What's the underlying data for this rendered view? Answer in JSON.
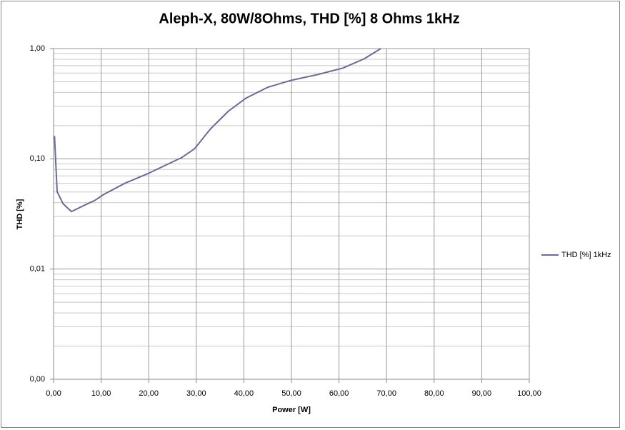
{
  "chart_data": {
    "type": "line",
    "title": "Aleph-X, 80W/8Ohms, THD [%] 8 Ohms 1kHz",
    "xlabel": "Power [W]",
    "ylabel": "THD [%]",
    "xlim": [
      0,
      100
    ],
    "xticks": [
      {
        "value": 0,
        "label": "0,00"
      },
      {
        "value": 10,
        "label": "10,00"
      },
      {
        "value": 20,
        "label": "20,00"
      },
      {
        "value": 30,
        "label": "30,00"
      },
      {
        "value": 40,
        "label": "40,00"
      },
      {
        "value": 50,
        "label": "50,00"
      },
      {
        "value": 60,
        "label": "60,00"
      },
      {
        "value": 70,
        "label": "70,00"
      },
      {
        "value": 80,
        "label": "80,00"
      },
      {
        "value": 90,
        "label": "90,00"
      },
      {
        "value": 100,
        "label": "100,00"
      }
    ],
    "ylim": [
      0.001,
      1
    ],
    "yscale": "log",
    "yticks": [
      {
        "value": 0.001,
        "label": "0,00"
      },
      {
        "value": 0.01,
        "label": "0,01"
      },
      {
        "value": 0.1,
        "label": "0,10"
      },
      {
        "value": 1,
        "label": "1,00"
      }
    ],
    "yminorticks": [
      0.002,
      0.003,
      0.004,
      0.005,
      0.006,
      0.007,
      0.008,
      0.009,
      0.02,
      0.03,
      0.04,
      0.05,
      0.06,
      0.07,
      0.08,
      0.09,
      0.2,
      0.3,
      0.4,
      0.5,
      0.6,
      0.7,
      0.8,
      0.9
    ],
    "grid": true,
    "legend": "right",
    "series": [
      {
        "name": "THD [%] 1kHz",
        "color": "#6b6b9b",
        "x": [
          0.2,
          0.75,
          2,
          3.75,
          6.8,
          8.7,
          10.5,
          15,
          20,
          27,
          29.6,
          33,
          36.8,
          40.5,
          45,
          50,
          55.6,
          60.8,
          65.3,
          68.8
        ],
        "values": [
          0.161,
          0.0503,
          0.0391,
          0.0332,
          0.0385,
          0.042,
          0.0474,
          0.06,
          0.074,
          0.103,
          0.123,
          0.187,
          0.272,
          0.356,
          0.445,
          0.516,
          0.582,
          0.665,
          0.808,
          1.0
        ]
      }
    ]
  }
}
